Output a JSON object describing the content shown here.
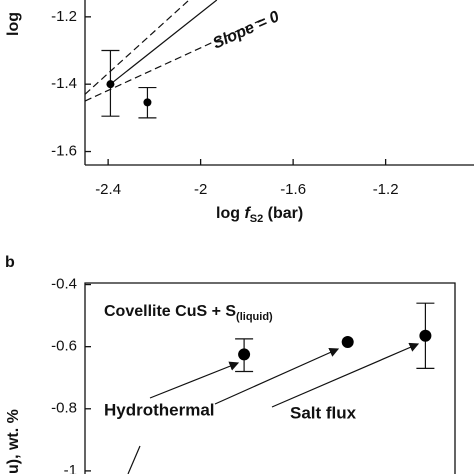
{
  "chart_data": [
    {
      "type": "scatter",
      "y_label": "log",
      "x_label": {
        "prefix": "log ",
        "italic": "f",
        "sub": "S2",
        "suffix": " (bar)"
      },
      "annotation": "Slope = 0",
      "xlim": [
        -2.5,
        -0.9
      ],
      "ylim": [
        -1.64,
        -1.15
      ],
      "xticks": [
        -2.4,
        -2,
        -1.6,
        -1.2
      ],
      "yticks": [
        -1.2,
        -1.4,
        -1.6
      ],
      "series": [
        {
          "color": "#000000",
          "x": [
            -2.39,
            -2.23
          ],
          "values": [
            -1.4,
            -1.454
          ],
          "err_low": [
            -1.495,
            -1.5
          ],
          "err_high": [
            -1.3,
            -1.41
          ]
        }
      ],
      "lines": [
        {
          "style": "solid",
          "x": [
            -2.39,
            -1.93
          ],
          "y": [
            -1.4,
            -1.15
          ]
        },
        {
          "style": "dashed",
          "x": [
            -2.5,
            -2.05
          ],
          "y": [
            -1.43,
            -1.15
          ]
        },
        {
          "style": "dashed",
          "x": [
            -2.5,
            -1.74
          ],
          "y": [
            -1.45,
            -1.21
          ]
        }
      ]
    },
    {
      "type": "scatter",
      "panel_label": "b",
      "y_label": "u), wt. %",
      "title": {
        "main": "Covellite CuS + S",
        "sub": "(liquid)"
      },
      "annotations": [
        "Hydrothermal",
        "Salt flux"
      ],
      "xlim": [
        0,
        1
      ],
      "ylim": [
        -1.01,
        -0.395
      ],
      "yticks": [
        -0.4,
        -0.6,
        -0.8,
        -1
      ],
      "series": [
        {
          "color": "#000000",
          "x": [
            0.43,
            0.71,
            0.92
          ],
          "values": [
            -0.625,
            -0.585,
            -0.565
          ],
          "err_low": [
            -0.68,
            null,
            -0.67
          ],
          "err_high": [
            -0.575,
            null,
            -0.46
          ]
        }
      ]
    }
  ]
}
